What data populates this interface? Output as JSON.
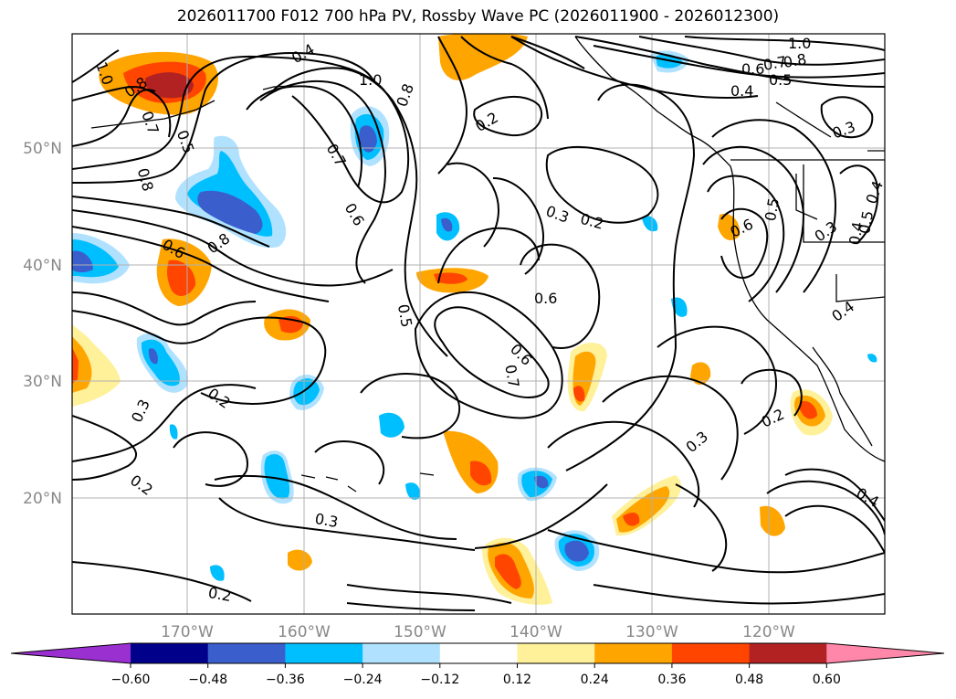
{
  "title": "2026011700 F012 700 hPa PV, Rossby Wave PC (2026011900 - 2026012300)",
  "map": {
    "lon_ticks": [
      "170°W",
      "160°W",
      "150°W",
      "140°W",
      "130°W",
      "120°W"
    ],
    "lat_ticks": [
      "50°N",
      "40°N",
      "30°N",
      "20°N"
    ],
    "contour_labels": [
      "1.0",
      "0.8",
      "0.7",
      "0.6",
      "0.5",
      "0.4",
      "0.3",
      "0.2"
    ]
  },
  "colorbar": {
    "ticks": [
      "−0.60",
      "−0.48",
      "−0.36",
      "−0.24",
      "−0.12",
      "0.12",
      "0.24",
      "0.36",
      "0.48",
      "0.60"
    ],
    "colors": [
      "#9b30d0",
      "#00008b",
      "#3a5fcd",
      "#00bfff",
      "#b0e2ff",
      "#ffffff",
      "#fff09a",
      "#ffa500",
      "#ff4500",
      "#b22222",
      "#ff88aa"
    ]
  },
  "colors": {
    "pos_light": "#fff09a",
    "pos_med": "#ffa500",
    "pos_strong": "#ff4500",
    "pos_max": "#b22222",
    "neg_light": "#b0e2ff",
    "neg_med": "#00bfff",
    "neg_strong": "#3a5fcd"
  }
}
